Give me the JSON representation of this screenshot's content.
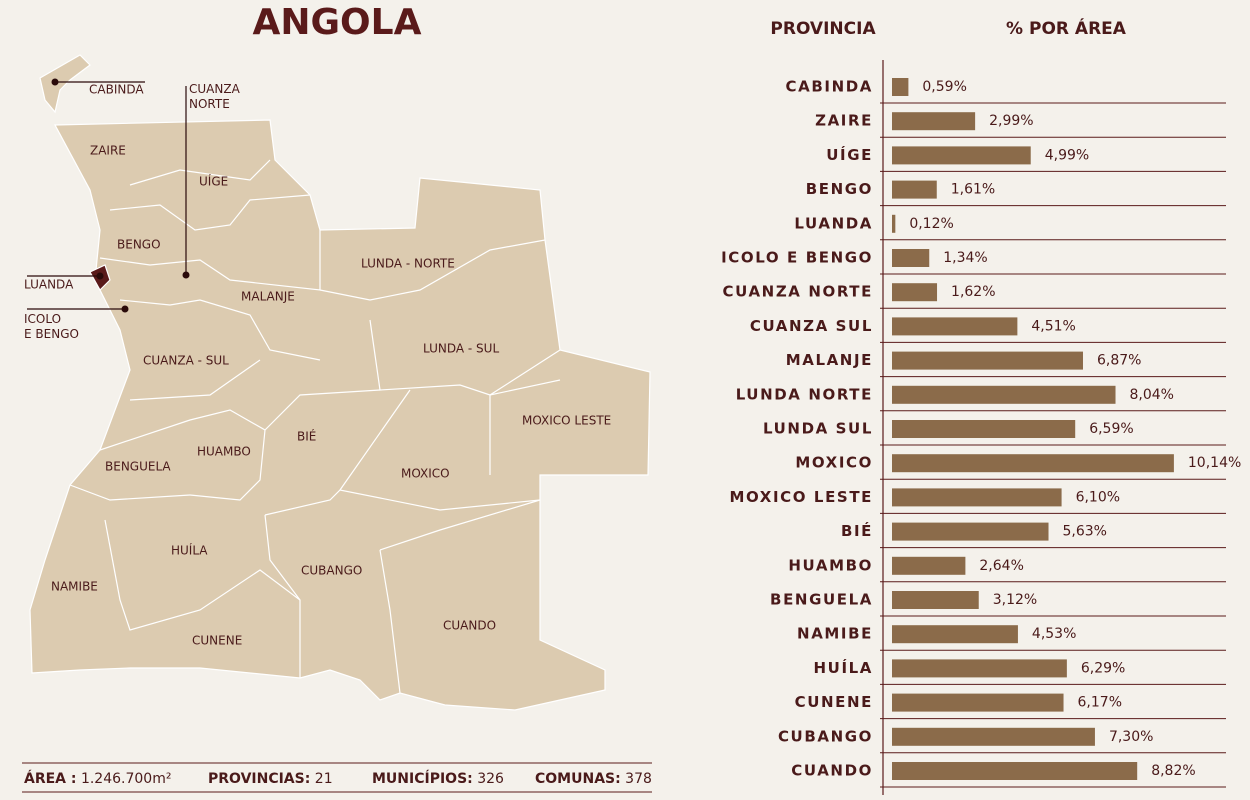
{
  "title": "ANGOLA",
  "map": {
    "labels": {
      "cabinda": "CABINDA",
      "cuanza_norte": [
        "CUANZA",
        "NORTE"
      ],
      "zaire": "ZAIRE",
      "uige": "UÍGE",
      "bengo": "BENGO",
      "luanda": "LUANDA",
      "icolo_e_bengo": [
        "ICOLO",
        "E BENGO"
      ],
      "lunda_norte": "LUNDA - NORTE",
      "malanje": "MALANJE",
      "lunda_sul": "LUNDA - SUL",
      "cuanza_sul": "CUANZA - SUL",
      "moxico_leste": "MOXICO LESTE",
      "bie": "BIÉ",
      "huambo": "HUAMBO",
      "benguela": "BENGUELA",
      "moxico": "MOXICO",
      "huila": "HUÍLA",
      "namibe": "NAMIBE",
      "cubango": "CUBANGO",
      "cuando": "CUANDO",
      "cunene": "CUNENE"
    }
  },
  "footer": [
    {
      "label": "ÁREA :",
      "value": "1.246.700m²"
    },
    {
      "label": "PROVINCIAS:",
      "value": "21"
    },
    {
      "label": "MUNICÍPIOS:",
      "value": "326"
    },
    {
      "label": "COMUNAS:",
      "value": "378"
    }
  ],
  "chart_data": {
    "type": "bar",
    "orientation": "horizontal",
    "category_header": "PROVINCIA",
    "value_header": "% POR ÁREA",
    "categories": [
      "CABINDA",
      "ZAIRE",
      "UÍGE",
      "BENGO",
      "LUANDA",
      "ICOLO E BENGO",
      "CUANZA NORTE",
      "CUANZA SUL",
      "MALANJE",
      "LUNDA NORTE",
      "LUNDA SUL",
      "MOXICO",
      "MOXICO LESTE",
      "BIÉ",
      "HUAMBO",
      "BENGUELA",
      "NAMIBE",
      "HUÍLA",
      "CUNENE",
      "CUBANGO",
      "CUANDO"
    ],
    "values": [
      0.59,
      2.99,
      4.99,
      1.61,
      0.12,
      1.34,
      1.62,
      4.51,
      6.87,
      8.04,
      6.59,
      10.14,
      6.1,
      5.63,
      2.64,
      3.12,
      4.53,
      6.29,
      6.17,
      7.3,
      8.82
    ],
    "value_labels": [
      "0,59%",
      "2,99%",
      "4,99%",
      "1,61%",
      "0,12%",
      "1,34%",
      "1,62%",
      "4,51%",
      "6,87%",
      "8,04%",
      "6,59%",
      "10,14%",
      "6,10%",
      "5,63%",
      "2,64%",
      "3,12%",
      "4,53%",
      "6,29%",
      "6,17%",
      "7,30%",
      "8,82%"
    ],
    "color": "#8b6b4a"
  }
}
